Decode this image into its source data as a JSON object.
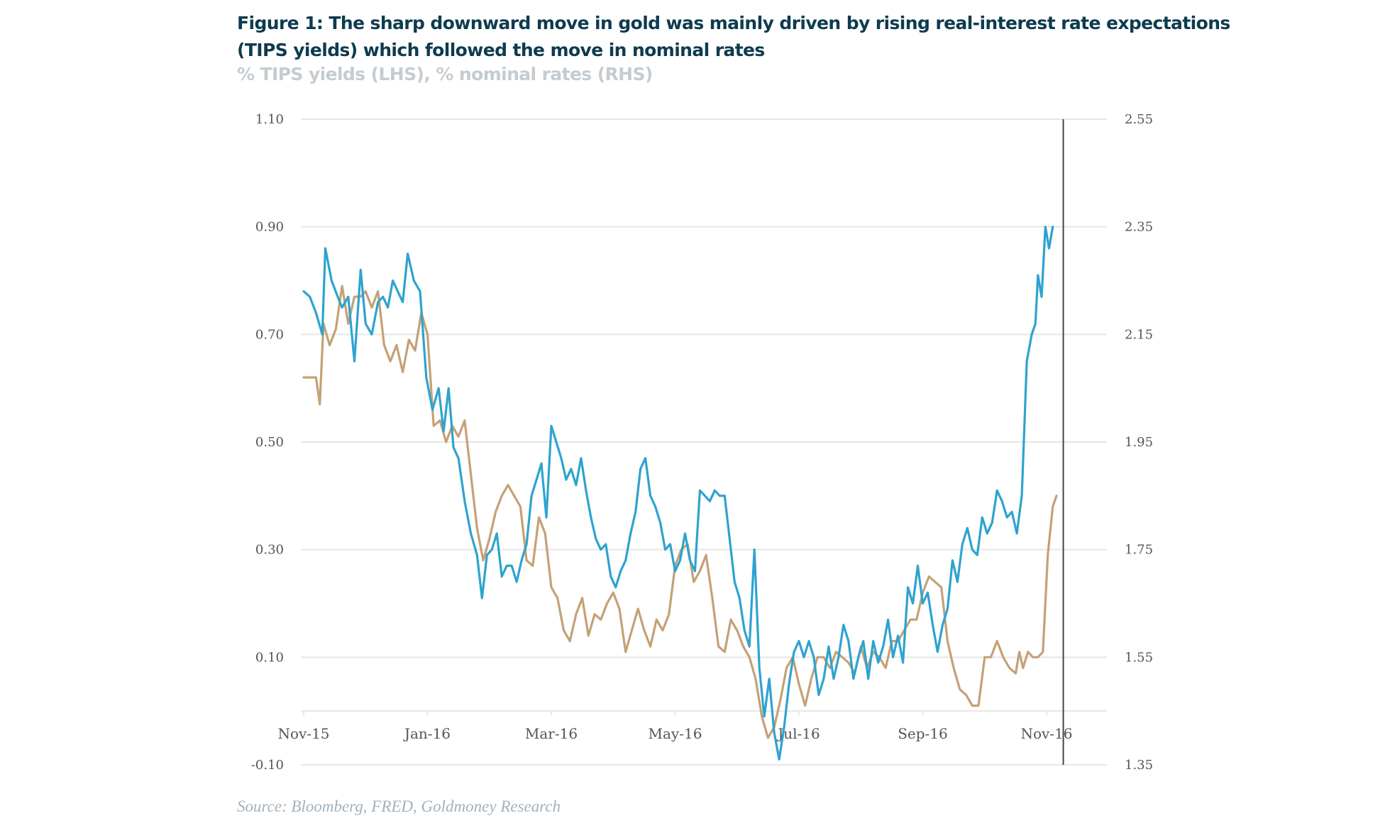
{
  "figure": {
    "title": "Figure 1: The sharp downward move in gold was mainly driven by rising real-interest rate expectations (TIPS yields) which followed the move in nominal rates",
    "subtitle": "% TIPS yields (LHS), % nominal rates (RHS)",
    "source": "Source: Bloomberg, FRED, Goldmoney Research"
  },
  "chart_data": {
    "type": "line",
    "title": "Figure 1: The sharp downward move in gold was mainly driven by rising real-interest rate expectations (TIPS yields) which followed the move in nominal rates",
    "subtitle": "% TIPS yields (LHS), % nominal rates (RHS)",
    "xlabel": "",
    "ylabel_left": "% TIPS yields",
    "ylabel_right": "% nominal rates",
    "x_tick_labels": [
      "Nov-15",
      "Jan-16",
      "Mar-16",
      "May-16",
      "Jul-16",
      "Sep-16",
      "Nov-16"
    ],
    "x_range_months": [
      0,
      12.2
    ],
    "ylim_left": [
      -0.1,
      1.1
    ],
    "ylim_right": [
      1.35,
      2.55
    ],
    "y_ticks_left": [
      "-0.10",
      "0.10",
      "0.30",
      "0.50",
      "0.70",
      "0.90",
      "1.10"
    ],
    "y_ticks_right": [
      "1.35",
      "1.55",
      "1.75",
      "1.95",
      "2.15",
      "2.35",
      "2.55"
    ],
    "y_tick_values_left": [
      -0.1,
      0.1,
      0.3,
      0.5,
      0.7,
      0.9,
      1.1
    ],
    "y_tick_values_right": [
      1.35,
      1.55,
      1.75,
      1.95,
      2.15,
      2.35,
      2.55
    ],
    "grid": true,
    "legend": "none",
    "vertical_marker_month": 12.27,
    "colors": {
      "tips": "#2ea3cf",
      "nominal": "#c4a176",
      "grid": "#e6e6e6",
      "marker": "#444444"
    },
    "series": [
      {
        "name": "TIPS yields (LHS)",
        "axis": "left",
        "x_months": [
          0.0,
          0.1,
          0.2,
          0.3,
          0.35,
          0.45,
          0.55,
          0.62,
          0.72,
          0.82,
          0.92,
          1.0,
          1.1,
          1.2,
          1.28,
          1.36,
          1.44,
          1.52,
          1.6,
          1.68,
          1.78,
          1.88,
          1.98,
          2.08,
          2.18,
          2.26,
          2.34,
          2.42,
          2.5,
          2.6,
          2.7,
          2.8,
          2.88,
          2.96,
          3.04,
          3.12,
          3.2,
          3.28,
          3.36,
          3.44,
          3.52,
          3.6,
          3.68,
          3.76,
          3.84,
          3.92,
          4.0,
          4.08,
          4.16,
          4.24,
          4.32,
          4.4,
          4.48,
          4.56,
          4.64,
          4.72,
          4.8,
          4.88,
          4.96,
          5.04,
          5.12,
          5.2,
          5.28,
          5.36,
          5.44,
          5.52,
          5.6,
          5.68,
          5.76,
          5.84,
          5.92,
          6.0,
          6.08,
          6.16,
          6.24,
          6.32,
          6.4,
          6.48,
          6.56,
          6.64,
          6.72,
          6.8,
          6.88,
          6.96,
          7.04,
          7.12,
          7.2,
          7.28,
          7.36,
          7.44,
          7.52,
          7.6,
          7.68,
          7.76,
          7.84,
          7.92,
          8.0,
          8.08,
          8.16,
          8.24,
          8.32,
          8.4,
          8.48,
          8.56,
          8.64,
          8.72,
          8.8,
          8.88,
          8.96,
          9.04,
          9.12,
          9.2,
          9.28,
          9.36,
          9.44,
          9.52,
          9.6,
          9.68,
          9.76,
          9.84,
          9.92,
          10.0,
          10.08,
          10.16,
          10.24,
          10.32,
          10.4,
          10.48,
          10.56,
          10.64,
          10.72,
          10.8,
          10.88,
          10.96,
          11.04,
          11.12,
          11.2,
          11.28,
          11.36,
          11.44,
          11.52,
          11.6,
          11.68,
          11.76,
          11.82,
          11.86,
          11.92,
          11.98,
          12.04,
          12.1,
          12.16
        ],
        "values": [
          0.78,
          0.77,
          0.74,
          0.7,
          0.86,
          0.8,
          0.77,
          0.75,
          0.77,
          0.65,
          0.82,
          0.72,
          0.7,
          0.76,
          0.77,
          0.75,
          0.8,
          0.78,
          0.76,
          0.85,
          0.8,
          0.78,
          0.62,
          0.56,
          0.6,
          0.52,
          0.6,
          0.49,
          0.47,
          0.39,
          0.33,
          0.29,
          0.21,
          0.29,
          0.3,
          0.33,
          0.25,
          0.27,
          0.27,
          0.24,
          0.28,
          0.31,
          0.4,
          0.43,
          0.46,
          0.36,
          0.53,
          0.5,
          0.47,
          0.43,
          0.45,
          0.42,
          0.47,
          0.41,
          0.36,
          0.32,
          0.3,
          0.31,
          0.25,
          0.23,
          0.26,
          0.28,
          0.33,
          0.37,
          0.45,
          0.47,
          0.4,
          0.38,
          0.35,
          0.3,
          0.31,
          0.26,
          0.28,
          0.33,
          0.28,
          0.26,
          0.41,
          0.4,
          0.39,
          0.41,
          0.4,
          0.4,
          0.32,
          0.24,
          0.21,
          0.15,
          0.12,
          0.3,
          0.08,
          -0.01,
          0.06,
          -0.04,
          -0.09,
          -0.03,
          0.05,
          0.11,
          0.13,
          0.1,
          0.13,
          0.1,
          0.03,
          0.06,
          0.12,
          0.06,
          0.1,
          0.16,
          0.13,
          0.06,
          0.1,
          0.13,
          0.06,
          0.13,
          0.09,
          0.12,
          0.17,
          0.1,
          0.14,
          0.09,
          0.23,
          0.2,
          0.27,
          0.2,
          0.22,
          0.16,
          0.11,
          0.16,
          0.19,
          0.28,
          0.24,
          0.31,
          0.34,
          0.3,
          0.29,
          0.36,
          0.33,
          0.35,
          0.41,
          0.39,
          0.36,
          0.37,
          0.33,
          0.4,
          0.65,
          0.7,
          0.72,
          0.81,
          0.77,
          0.9,
          0.86,
          0.9
        ]
      },
      {
        "name": "Nominal rates (RHS)",
        "axis": "right",
        "x_months": [
          0.0,
          0.1,
          0.2,
          0.26,
          0.32,
          0.42,
          0.52,
          0.62,
          0.72,
          0.82,
          0.92,
          1.0,
          1.1,
          1.2,
          1.3,
          1.4,
          1.5,
          1.6,
          1.7,
          1.8,
          1.9,
          2.0,
          2.1,
          2.2,
          2.3,
          2.4,
          2.5,
          2.6,
          2.7,
          2.8,
          2.9,
          3.0,
          3.1,
          3.2,
          3.3,
          3.4,
          3.5,
          3.6,
          3.7,
          3.8,
          3.9,
          4.0,
          4.1,
          4.2,
          4.3,
          4.4,
          4.5,
          4.6,
          4.7,
          4.8,
          4.9,
          5.0,
          5.1,
          5.2,
          5.3,
          5.4,
          5.5,
          5.6,
          5.7,
          5.8,
          5.9,
          6.0,
          6.1,
          6.2,
          6.3,
          6.4,
          6.5,
          6.6,
          6.7,
          6.8,
          6.9,
          7.0,
          7.1,
          7.2,
          7.3,
          7.4,
          7.5,
          7.6,
          7.7,
          7.8,
          7.9,
          8.0,
          8.1,
          8.2,
          8.3,
          8.4,
          8.5,
          8.6,
          8.7,
          8.8,
          8.9,
          9.0,
          9.1,
          9.2,
          9.3,
          9.4,
          9.5,
          9.6,
          9.7,
          9.8,
          9.9,
          10.0,
          10.1,
          10.2,
          10.3,
          10.4,
          10.5,
          10.6,
          10.7,
          10.8,
          10.9,
          11.0,
          11.1,
          11.2,
          11.3,
          11.4,
          11.5,
          11.56,
          11.62,
          11.7,
          11.78,
          11.86,
          11.94,
          12.02,
          12.1,
          12.16
        ],
        "values": [
          2.07,
          2.07,
          2.07,
          2.02,
          2.17,
          2.13,
          2.16,
          2.24,
          2.17,
          2.22,
          2.22,
          2.23,
          2.2,
          2.23,
          2.13,
          2.1,
          2.13,
          2.08,
          2.14,
          2.12,
          2.19,
          2.15,
          1.98,
          1.99,
          1.95,
          1.98,
          1.96,
          1.99,
          1.89,
          1.79,
          1.73,
          1.77,
          1.82,
          1.85,
          1.87,
          1.85,
          1.83,
          1.73,
          1.72,
          1.81,
          1.78,
          1.68,
          1.66,
          1.6,
          1.58,
          1.63,
          1.66,
          1.59,
          1.63,
          1.62,
          1.65,
          1.67,
          1.64,
          1.56,
          1.6,
          1.64,
          1.6,
          1.57,
          1.62,
          1.6,
          1.63,
          1.72,
          1.75,
          1.76,
          1.69,
          1.71,
          1.74,
          1.66,
          1.57,
          1.56,
          1.62,
          1.6,
          1.57,
          1.55,
          1.51,
          1.44,
          1.4,
          1.42,
          1.47,
          1.53,
          1.55,
          1.5,
          1.46,
          1.51,
          1.55,
          1.55,
          1.53,
          1.56,
          1.55,
          1.54,
          1.52,
          1.57,
          1.53,
          1.56,
          1.55,
          1.53,
          1.58,
          1.58,
          1.6,
          1.62,
          1.62,
          1.67,
          1.7,
          1.69,
          1.68,
          1.58,
          1.53,
          1.49,
          1.48,
          1.46,
          1.46,
          1.55,
          1.55,
          1.58,
          1.55,
          1.53,
          1.52,
          1.56,
          1.53,
          1.56,
          1.55,
          1.55,
          1.56,
          1.74,
          1.83,
          1.85,
          1.84,
          1.88,
          1.86,
          1.86
        ]
      }
    ]
  }
}
